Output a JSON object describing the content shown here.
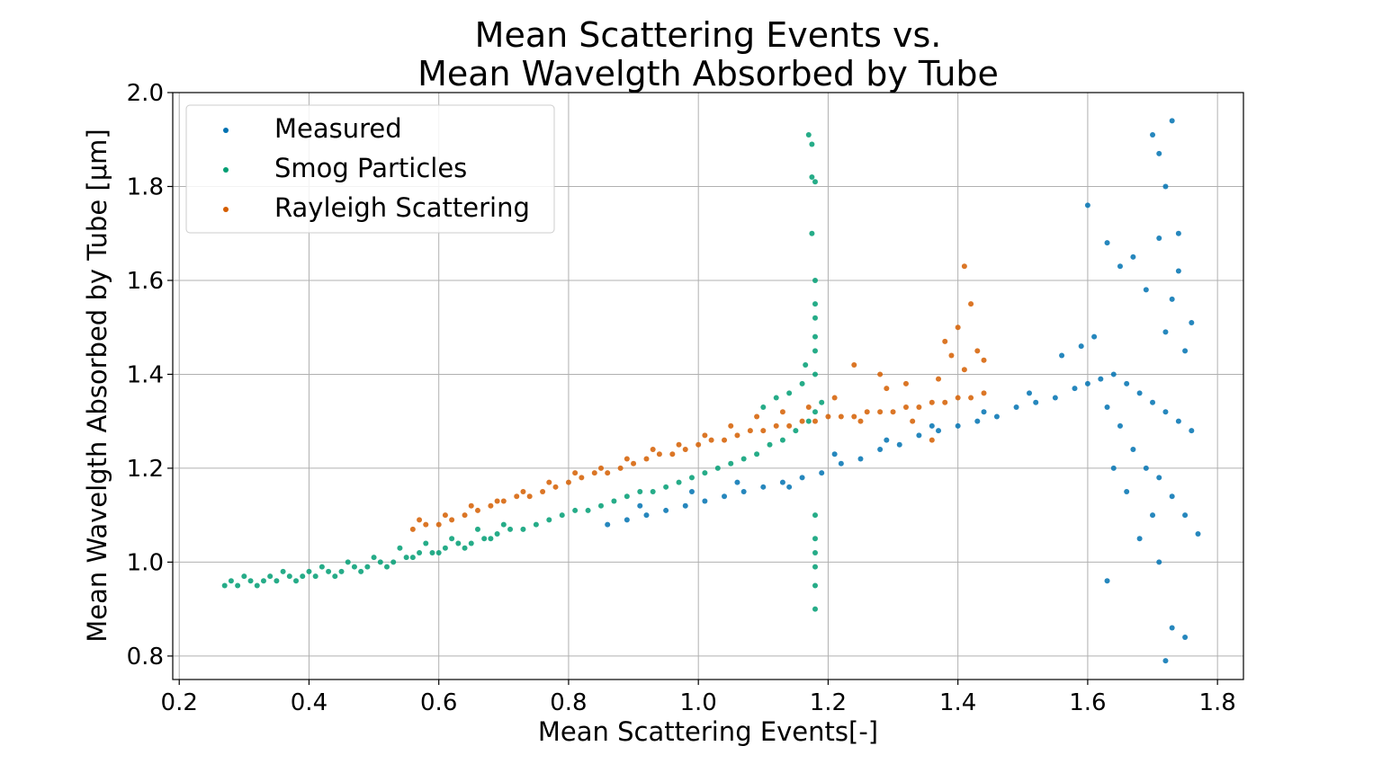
{
  "chart_data": {
    "type": "scatter",
    "title": [
      "Mean Scattering Events vs.",
      "Mean Wavelgth Absorbed by Tube"
    ],
    "xlabel": "Mean Scattering Events[-]",
    "ylabel": "Mean Wavelgth Absorbed by Tube [μm]",
    "xlim": [
      0.19,
      1.84
    ],
    "ylim": [
      0.75,
      2.0
    ],
    "xticks": [
      0.2,
      0.4,
      0.6,
      0.8,
      1.0,
      1.2,
      1.4,
      1.6,
      1.8
    ],
    "xtick_labels": [
      "0.2",
      "0.4",
      "0.6",
      "0.8",
      "1.0",
      "1.2",
      "1.4",
      "1.6",
      "1.8"
    ],
    "yticks": [
      0.8,
      1.0,
      1.2,
      1.4,
      1.6,
      1.8,
      2.0
    ],
    "ytick_labels": [
      "0.8",
      "1.0",
      "1.2",
      "1.4",
      "1.6",
      "1.8",
      "2.0"
    ],
    "grid": true,
    "legend_position": "top-left",
    "series": [
      {
        "name": "Measured",
        "color": "#0072b2",
        "x": [
          0.86,
          0.89,
          0.92,
          0.95,
          0.98,
          1.01,
          1.04,
          1.07,
          1.1,
          1.13,
          1.16,
          1.19,
          1.22,
          1.25,
          1.28,
          1.31,
          1.34,
          1.37,
          1.4,
          1.43,
          1.46,
          1.49,
          1.52,
          1.55,
          1.58,
          1.6,
          1.62,
          1.64,
          1.66,
          1.68,
          1.7,
          1.72,
          1.74,
          1.76,
          0.91,
          0.99,
          1.06,
          1.14,
          1.21,
          1.29,
          1.36,
          1.44,
          1.51,
          1.56,
          1.59,
          1.61,
          1.63,
          1.65,
          1.67,
          1.69,
          1.71,
          1.73,
          1.75,
          1.77,
          1.7,
          1.71,
          1.72,
          1.73,
          1.74,
          1.6,
          1.63,
          1.65,
          1.67,
          1.69,
          1.71,
          1.72,
          1.73,
          1.74,
          1.75,
          1.76,
          1.63,
          1.72,
          1.73,
          1.75,
          1.7,
          1.71,
          1.64,
          1.66,
          1.68
        ],
        "y": [
          1.08,
          1.09,
          1.1,
          1.11,
          1.12,
          1.13,
          1.14,
          1.15,
          1.16,
          1.17,
          1.18,
          1.19,
          1.21,
          1.22,
          1.24,
          1.25,
          1.27,
          1.28,
          1.29,
          1.3,
          1.31,
          1.33,
          1.34,
          1.35,
          1.37,
          1.38,
          1.39,
          1.4,
          1.38,
          1.36,
          1.34,
          1.32,
          1.3,
          1.28,
          1.12,
          1.15,
          1.17,
          1.16,
          1.23,
          1.26,
          1.29,
          1.32,
          1.36,
          1.44,
          1.46,
          1.48,
          1.33,
          1.29,
          1.24,
          1.2,
          1.18,
          1.14,
          1.1,
          1.06,
          1.91,
          1.87,
          1.8,
          1.94,
          1.7,
          1.76,
          1.68,
          1.63,
          1.65,
          1.58,
          1.69,
          1.49,
          1.56,
          1.62,
          1.45,
          1.51,
          0.96,
          0.79,
          0.86,
          0.84,
          1.1,
          1.0,
          1.2,
          1.15,
          1.05
        ]
      },
      {
        "name": "Smog Particles",
        "color": "#009e73",
        "x": [
          0.27,
          0.29,
          0.31,
          0.33,
          0.35,
          0.37,
          0.39,
          0.41,
          0.43,
          0.45,
          0.47,
          0.49,
          0.51,
          0.53,
          0.55,
          0.57,
          0.59,
          0.61,
          0.63,
          0.65,
          0.67,
          0.69,
          0.71,
          0.73,
          0.75,
          0.77,
          0.79,
          0.81,
          0.83,
          0.85,
          0.87,
          0.89,
          0.91,
          0.93,
          0.95,
          0.97,
          0.99,
          1.01,
          1.03,
          1.05,
          1.07,
          1.09,
          1.11,
          1.13,
          1.15,
          1.17,
          1.18,
          1.19,
          0.28,
          0.3,
          0.32,
          0.34,
          0.36,
          0.38,
          0.4,
          0.42,
          0.44,
          0.46,
          0.48,
          0.5,
          0.52,
          0.54,
          0.56,
          0.58,
          0.6,
          0.62,
          0.64,
          0.66,
          0.68,
          0.7,
          1.1,
          1.12,
          1.14,
          1.16,
          1.165,
          1.17,
          1.175,
          1.175,
          1.175,
          1.18,
          1.18,
          1.18,
          1.18,
          1.18,
          1.18,
          1.18,
          1.18,
          1.18,
          1.18,
          1.18,
          1.18,
          1.18
        ],
        "y": [
          0.95,
          0.95,
          0.96,
          0.96,
          0.96,
          0.97,
          0.97,
          0.97,
          0.98,
          0.98,
          0.99,
          0.99,
          1.0,
          1.0,
          1.01,
          1.02,
          1.02,
          1.03,
          1.04,
          1.04,
          1.05,
          1.06,
          1.07,
          1.07,
          1.08,
          1.09,
          1.1,
          1.11,
          1.11,
          1.12,
          1.13,
          1.14,
          1.15,
          1.15,
          1.16,
          1.17,
          1.18,
          1.19,
          1.2,
          1.21,
          1.22,
          1.23,
          1.25,
          1.26,
          1.28,
          1.3,
          1.32,
          1.34,
          0.96,
          0.97,
          0.95,
          0.97,
          0.98,
          0.96,
          0.98,
          0.99,
          0.97,
          1.0,
          0.98,
          1.01,
          0.99,
          1.03,
          1.01,
          1.04,
          1.02,
          1.05,
          1.03,
          1.07,
          1.05,
          1.08,
          1.33,
          1.35,
          1.36,
          1.38,
          1.42,
          1.91,
          1.89,
          1.82,
          1.7,
          1.81,
          1.6,
          1.52,
          1.48,
          1.45,
          1.4,
          1.1,
          1.05,
          1.02,
          0.99,
          0.95,
          0.9,
          1.55
        ]
      },
      {
        "name": "Rayleigh Scattering",
        "color": "#d55e00",
        "x": [
          0.56,
          0.58,
          0.6,
          0.62,
          0.64,
          0.66,
          0.68,
          0.7,
          0.72,
          0.74,
          0.76,
          0.78,
          0.8,
          0.82,
          0.84,
          0.86,
          0.88,
          0.9,
          0.92,
          0.94,
          0.96,
          0.98,
          1.0,
          1.02,
          1.04,
          1.06,
          1.08,
          1.1,
          1.12,
          1.14,
          1.16,
          1.18,
          1.2,
          1.22,
          1.24,
          1.26,
          1.28,
          1.3,
          1.32,
          1.34,
          1.36,
          1.38,
          1.4,
          1.42,
          1.44,
          0.57,
          0.61,
          0.65,
          0.69,
          0.73,
          0.77,
          0.81,
          0.85,
          0.89,
          0.93,
          0.97,
          1.01,
          1.05,
          1.09,
          1.13,
          1.17,
          1.21,
          1.25,
          1.29,
          1.33,
          1.37,
          1.41,
          1.43,
          1.38,
          1.4,
          1.42,
          1.41,
          1.39,
          1.44,
          1.36,
          1.32,
          1.28,
          1.24
        ],
        "y": [
          1.07,
          1.08,
          1.08,
          1.09,
          1.1,
          1.11,
          1.12,
          1.13,
          1.14,
          1.14,
          1.15,
          1.16,
          1.17,
          1.18,
          1.19,
          1.19,
          1.2,
          1.21,
          1.22,
          1.23,
          1.23,
          1.24,
          1.25,
          1.26,
          1.26,
          1.27,
          1.28,
          1.28,
          1.29,
          1.29,
          1.3,
          1.3,
          1.31,
          1.31,
          1.31,
          1.32,
          1.32,
          1.32,
          1.33,
          1.33,
          1.34,
          1.34,
          1.35,
          1.35,
          1.36,
          1.09,
          1.1,
          1.12,
          1.13,
          1.15,
          1.17,
          1.19,
          1.2,
          1.22,
          1.24,
          1.25,
          1.27,
          1.29,
          1.31,
          1.32,
          1.33,
          1.35,
          1.3,
          1.37,
          1.3,
          1.39,
          1.41,
          1.45,
          1.47,
          1.5,
          1.55,
          1.63,
          1.44,
          1.43,
          1.26,
          1.38,
          1.4,
          1.42
        ]
      }
    ]
  }
}
